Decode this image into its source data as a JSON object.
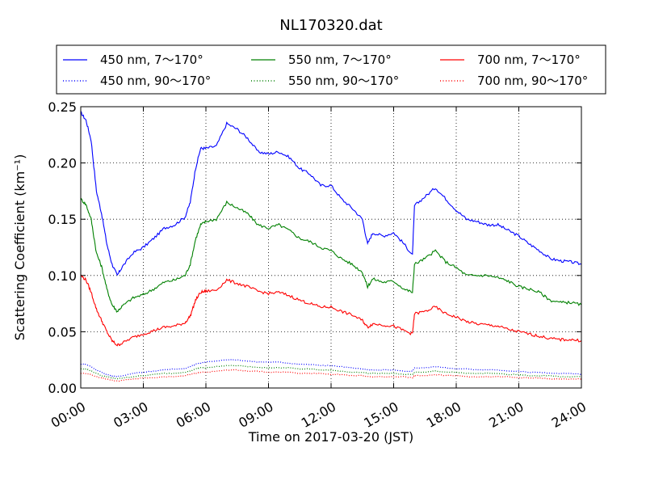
{
  "chart_data": {
    "type": "line",
    "title": "NL170320.dat",
    "xlabel": "Time on 2017-03-20 (JST)",
    "ylabel": "Scattering Coefficient (km⁻¹)",
    "x_unit": "hours",
    "xlim": [
      0,
      24
    ],
    "ylim": [
      0,
      0.25
    ],
    "xticks": [
      0,
      3,
      6,
      9,
      12,
      15,
      18,
      21,
      24
    ],
    "xtick_labels": [
      "00:00",
      "03:00",
      "06:00",
      "09:00",
      "12:00",
      "15:00",
      "18:00",
      "21:00",
      "24:00"
    ],
    "yticks": [
      0,
      0.05,
      0.1,
      0.15,
      0.2,
      0.25
    ],
    "ytick_labels": [
      "0.00",
      "0.05",
      "0.10",
      "0.15",
      "0.20",
      "0.25"
    ],
    "grid": true,
    "legend_position": "top",
    "x": [
      0,
      0.25,
      0.5,
      0.75,
      1.0,
      1.25,
      1.5,
      1.75,
      2.0,
      2.5,
      3.0,
      3.5,
      4.0,
      4.5,
      5.0,
      5.25,
      5.5,
      5.75,
      6.0,
      6.5,
      7.0,
      7.5,
      8.0,
      8.5,
      9.0,
      9.5,
      10.0,
      10.5,
      11.0,
      11.5,
      12.0,
      12.5,
      13.0,
      13.5,
      13.75,
      14.0,
      14.5,
      15.0,
      15.5,
      15.9,
      16.0,
      16.5,
      17.0,
      17.5,
      18.0,
      18.5,
      19.0,
      19.5,
      20.0,
      20.5,
      21.0,
      21.5,
      22.0,
      22.5,
      23.0,
      23.5,
      24.0
    ],
    "series": [
      {
        "name": "450 nm, 7～170°",
        "color": "#0000ff",
        "style": "solid",
        "values": [
          0.245,
          0.238,
          0.22,
          0.175,
          0.155,
          0.128,
          0.11,
          0.1,
          0.108,
          0.12,
          0.125,
          0.133,
          0.142,
          0.145,
          0.152,
          0.165,
          0.195,
          0.213,
          0.213,
          0.215,
          0.235,
          0.23,
          0.222,
          0.21,
          0.208,
          0.21,
          0.205,
          0.195,
          0.19,
          0.18,
          0.18,
          0.168,
          0.16,
          0.15,
          0.128,
          0.138,
          0.135,
          0.138,
          0.128,
          0.118,
          0.162,
          0.17,
          0.178,
          0.168,
          0.158,
          0.15,
          0.148,
          0.145,
          0.145,
          0.14,
          0.135,
          0.128,
          0.122,
          0.115,
          0.113,
          0.112,
          0.11
        ]
      },
      {
        "name": "550 nm, 7～170°",
        "color": "#008000",
        "style": "solid",
        "values": [
          0.168,
          0.163,
          0.15,
          0.12,
          0.108,
          0.088,
          0.074,
          0.068,
          0.073,
          0.08,
          0.083,
          0.088,
          0.094,
          0.096,
          0.1,
          0.11,
          0.132,
          0.145,
          0.148,
          0.15,
          0.165,
          0.16,
          0.155,
          0.145,
          0.142,
          0.145,
          0.14,
          0.133,
          0.13,
          0.125,
          0.122,
          0.115,
          0.11,
          0.103,
          0.09,
          0.097,
          0.094,
          0.095,
          0.088,
          0.085,
          0.11,
          0.115,
          0.122,
          0.112,
          0.107,
          0.1,
          0.1,
          0.1,
          0.098,
          0.095,
          0.09,
          0.088,
          0.085,
          0.078,
          0.076,
          0.076,
          0.074
        ]
      },
      {
        "name": "700 nm, 7～170°",
        "color": "#ff0000",
        "style": "solid",
        "values": [
          0.1,
          0.096,
          0.085,
          0.07,
          0.06,
          0.05,
          0.042,
          0.038,
          0.04,
          0.045,
          0.048,
          0.051,
          0.054,
          0.055,
          0.058,
          0.064,
          0.078,
          0.085,
          0.086,
          0.087,
          0.096,
          0.093,
          0.09,
          0.086,
          0.084,
          0.085,
          0.082,
          0.078,
          0.075,
          0.072,
          0.072,
          0.068,
          0.065,
          0.06,
          0.054,
          0.057,
          0.056,
          0.055,
          0.051,
          0.048,
          0.066,
          0.068,
          0.072,
          0.066,
          0.063,
          0.059,
          0.057,
          0.056,
          0.055,
          0.052,
          0.05,
          0.048,
          0.046,
          0.044,
          0.043,
          0.043,
          0.042
        ]
      },
      {
        "name": "450 nm, 90～170°",
        "color": "#0000ff",
        "style": "dotted",
        "values": [
          0.021,
          0.021,
          0.019,
          0.016,
          0.014,
          0.012,
          0.011,
          0.01,
          0.011,
          0.013,
          0.014,
          0.015,
          0.016,
          0.017,
          0.017,
          0.019,
          0.021,
          0.022,
          0.023,
          0.024,
          0.025,
          0.025,
          0.024,
          0.023,
          0.023,
          0.023,
          0.022,
          0.021,
          0.021,
          0.02,
          0.02,
          0.019,
          0.018,
          0.017,
          0.016,
          0.016,
          0.016,
          0.016,
          0.015,
          0.015,
          0.018,
          0.018,
          0.019,
          0.018,
          0.017,
          0.017,
          0.016,
          0.016,
          0.016,
          0.015,
          0.015,
          0.014,
          0.014,
          0.013,
          0.013,
          0.013,
          0.012
        ]
      },
      {
        "name": "550 nm, 90～170°",
        "color": "#008000",
        "style": "dotted",
        "values": [
          0.017,
          0.017,
          0.015,
          0.013,
          0.011,
          0.01,
          0.009,
          0.008,
          0.009,
          0.01,
          0.011,
          0.012,
          0.013,
          0.013,
          0.014,
          0.015,
          0.017,
          0.018,
          0.018,
          0.019,
          0.02,
          0.02,
          0.019,
          0.018,
          0.018,
          0.018,
          0.018,
          0.017,
          0.017,
          0.016,
          0.016,
          0.015,
          0.014,
          0.014,
          0.013,
          0.013,
          0.013,
          0.013,
          0.012,
          0.012,
          0.014,
          0.014,
          0.015,
          0.014,
          0.014,
          0.013,
          0.013,
          0.013,
          0.013,
          0.012,
          0.012,
          0.011,
          0.011,
          0.011,
          0.01,
          0.01,
          0.01
        ]
      },
      {
        "name": "700 nm, 90～170°",
        "color": "#ff0000",
        "style": "dotted",
        "values": [
          0.013,
          0.013,
          0.012,
          0.01,
          0.009,
          0.008,
          0.007,
          0.006,
          0.007,
          0.008,
          0.009,
          0.009,
          0.01,
          0.01,
          0.011,
          0.012,
          0.013,
          0.014,
          0.014,
          0.015,
          0.016,
          0.016,
          0.015,
          0.015,
          0.014,
          0.014,
          0.014,
          0.013,
          0.013,
          0.013,
          0.012,
          0.012,
          0.011,
          0.011,
          0.01,
          0.01,
          0.01,
          0.01,
          0.01,
          0.009,
          0.011,
          0.011,
          0.012,
          0.011,
          0.011,
          0.01,
          0.01,
          0.01,
          0.01,
          0.01,
          0.009,
          0.009,
          0.009,
          0.008,
          0.008,
          0.008,
          0.008
        ]
      }
    ],
    "legend_order": [
      0,
      1,
      2,
      3,
      4,
      5
    ]
  }
}
